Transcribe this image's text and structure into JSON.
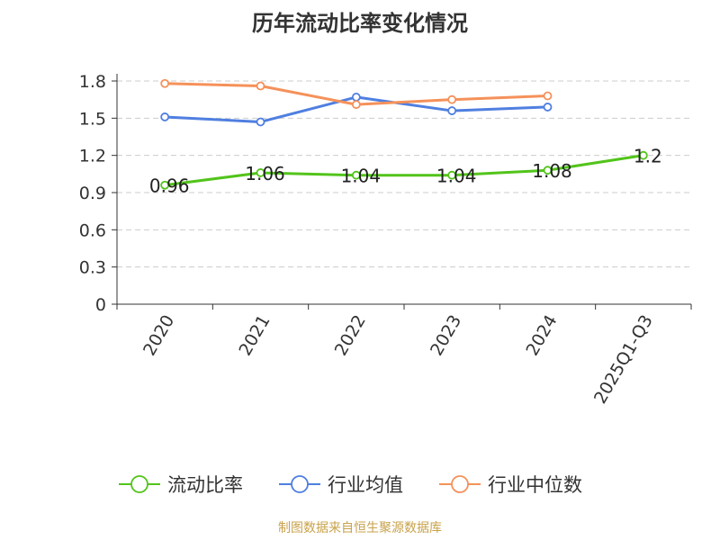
{
  "chart_data": {
    "type": "line",
    "title": "历年流动比率变化情况",
    "categories": [
      "2020",
      "2021",
      "2022",
      "2023",
      "2024",
      "2025Q1-Q3"
    ],
    "ylim": [
      0,
      1.8
    ],
    "yticks": [
      "0",
      "0.3",
      "0.6",
      "0.9",
      "1.2",
      "1.5",
      "1.8"
    ],
    "grid": true,
    "legend_position": "bottom",
    "series": [
      {
        "name": "流动比率",
        "color": "#52c41a",
        "values": [
          0.96,
          1.06,
          1.04,
          1.04,
          1.08,
          1.2
        ],
        "labels": [
          "0.96",
          "1.06",
          "1.04",
          "1.04",
          "1.08",
          "1.2"
        ]
      },
      {
        "name": "行业均值",
        "color": "#4f7fe0",
        "values": [
          1.51,
          1.47,
          1.67,
          1.56,
          1.59,
          null
        ]
      },
      {
        "name": "行业中位数",
        "color": "#f5915a",
        "values": [
          1.78,
          1.76,
          1.61,
          1.65,
          1.68,
          null
        ]
      }
    ]
  },
  "source_text": "制图数据来自恒生聚源数据库"
}
